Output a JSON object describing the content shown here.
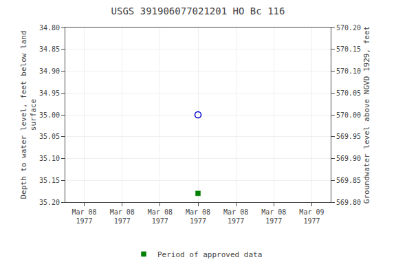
{
  "chart_data": {
    "type": "scatter",
    "title": "USGS 391906077021201 HO Bc 116",
    "ylabel": "Depth to water level, feet below land\nsurface",
    "y2label": "Groundwater level above NGVD 1929, feet",
    "categories": [
      "Mar 08\n1977",
      "Mar 08\n1977",
      "Mar 08\n1977",
      "Mar 08\n1977",
      "Mar 08\n1977",
      "Mar 08\n1977",
      "Mar 09\n1977"
    ],
    "series": [
      {
        "color": "#0000cc",
        "marker": "circle-open",
        "values": [
          null,
          null,
          null,
          35.0,
          null,
          null,
          null
        ]
      },
      {
        "name": "Period of approved data",
        "color": "#008000",
        "marker": "square",
        "values": [
          null,
          null,
          null,
          35.18,
          null,
          null,
          null
        ]
      }
    ],
    "ylim": [
      35.2,
      34.8
    ],
    "yticks": [
      {
        "value": 34.8,
        "label": "34.80"
      },
      34.85,
      {
        "value": 34.9,
        "label": "34.90"
      },
      34.95,
      {
        "value": 35.0,
        "label": "35.00"
      },
      35.05,
      {
        "value": 35.1,
        "label": "35.10"
      },
      35.15,
      {
        "value": 35.2,
        "label": "35.20"
      }
    ],
    "y2lim": [
      569.8,
      570.2
    ],
    "y2ticks": [
      {
        "value": 570.2,
        "label": "570.20"
      },
      570.15,
      {
        "value": 570.1,
        "label": "570.10"
      },
      570.05,
      {
        "value": 570.0,
        "label": "570.00"
      },
      569.95,
      {
        "value": 569.9,
        "label": "569.90"
      },
      569.85,
      {
        "value": 569.8,
        "label": "569.80"
      }
    ],
    "grid": true,
    "legend": "bottom"
  }
}
